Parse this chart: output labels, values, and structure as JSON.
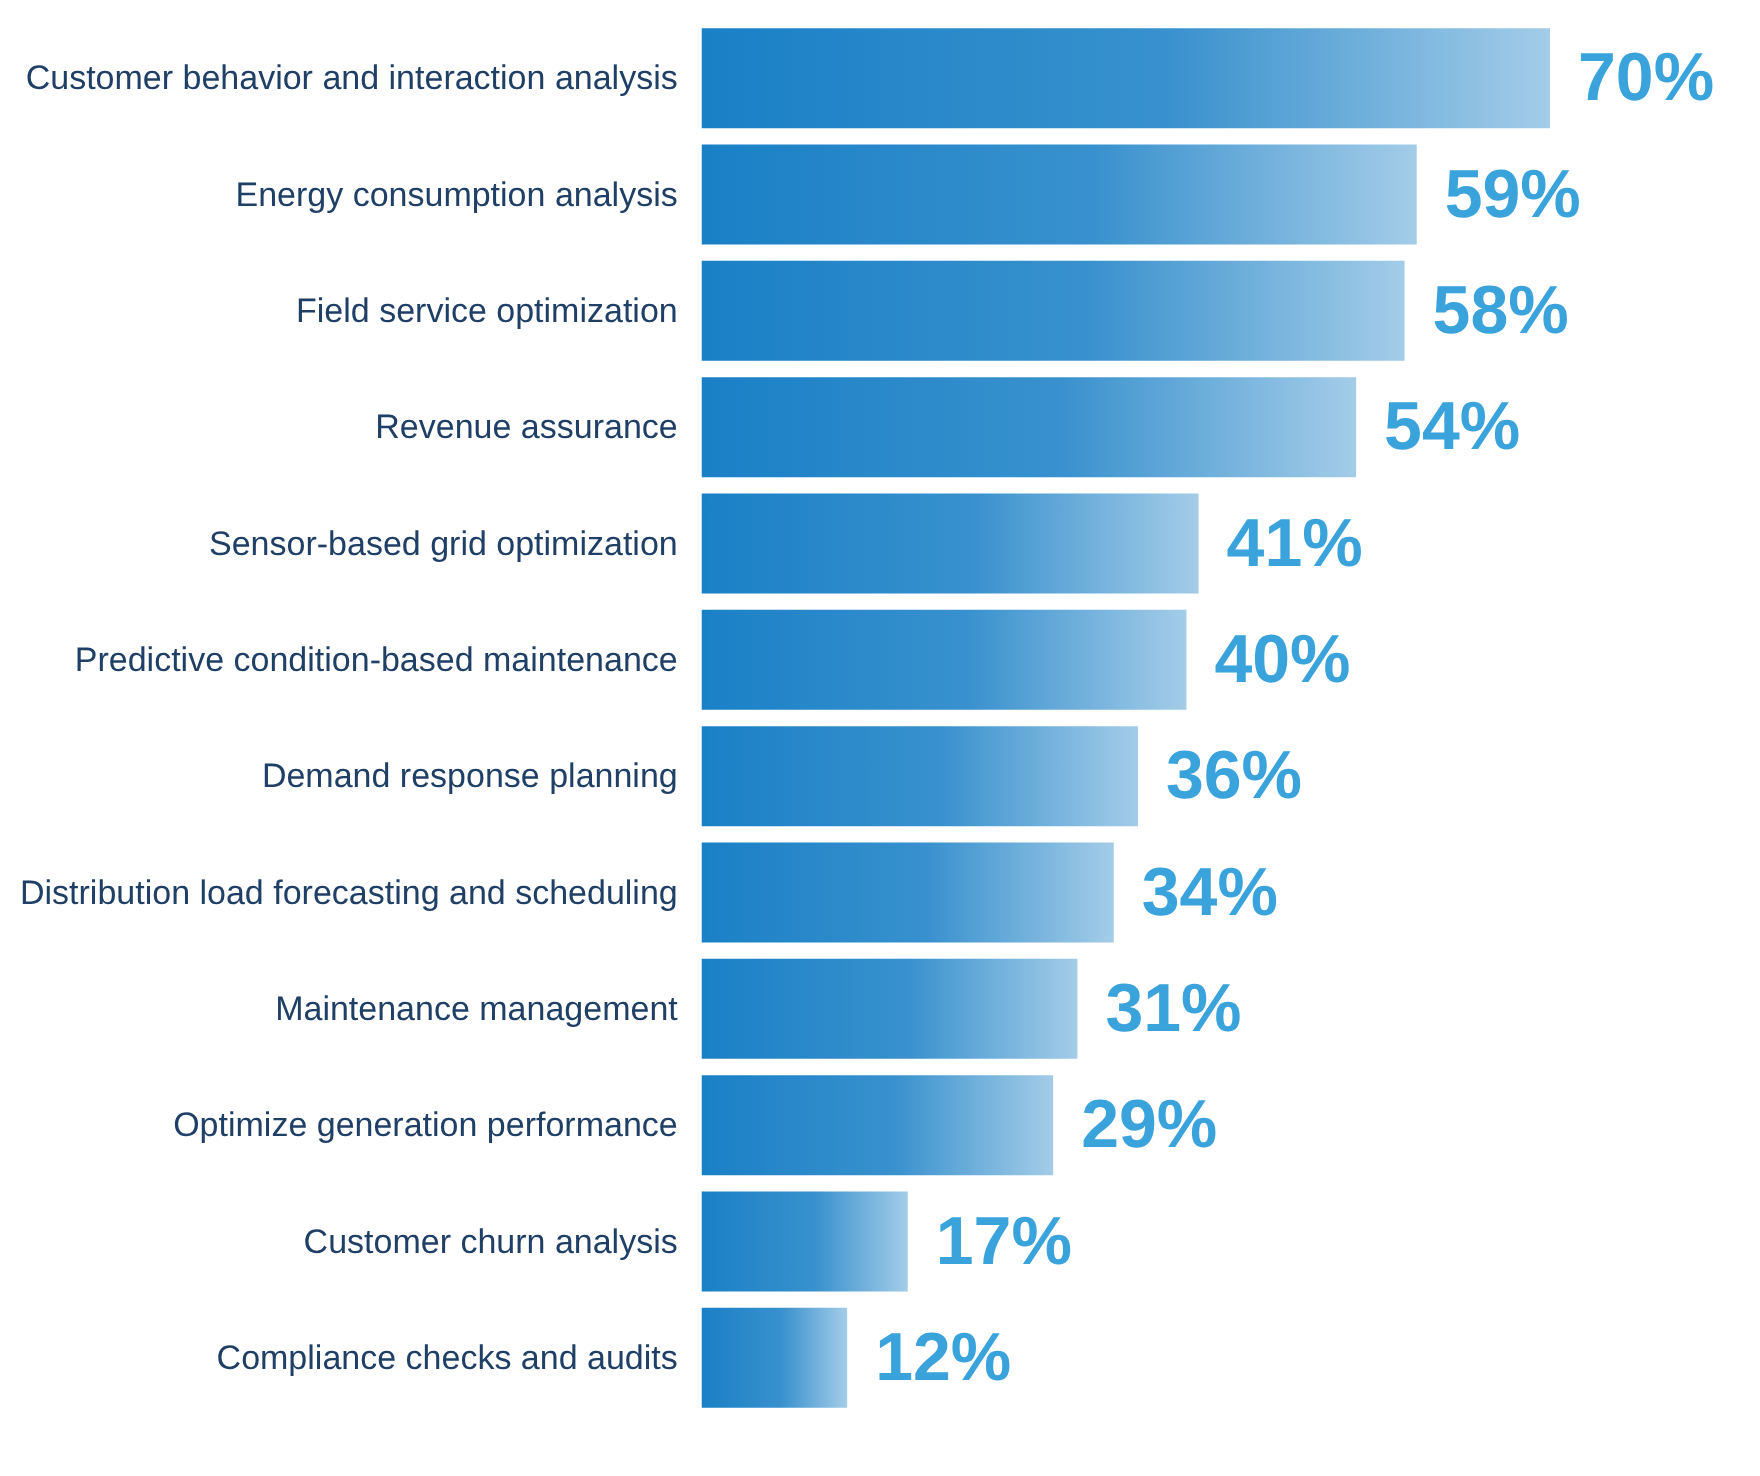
{
  "chart_data": {
    "type": "bar",
    "orientation": "horizontal",
    "categories": [
      "Customer behavior and interaction analysis",
      "Energy consumption analysis",
      "Field service optimization",
      "Revenue assurance",
      "Sensor-based grid optimization",
      "Predictive condition-based maintenance",
      "Demand response planning",
      "Distribution load forecasting and scheduling",
      "Maintenance management",
      "Optimize generation performance",
      "Customer churn analysis",
      "Compliance checks and audits"
    ],
    "values": [
      70,
      59,
      58,
      54,
      41,
      40,
      36,
      34,
      31,
      29,
      17,
      12
    ],
    "value_labels": [
      "70%",
      "59%",
      "58%",
      "54%",
      "41%",
      "40%",
      "36%",
      "34%",
      "31%",
      "29%",
      "17%",
      "12%"
    ],
    "color": "#1a80c6"
  }
}
